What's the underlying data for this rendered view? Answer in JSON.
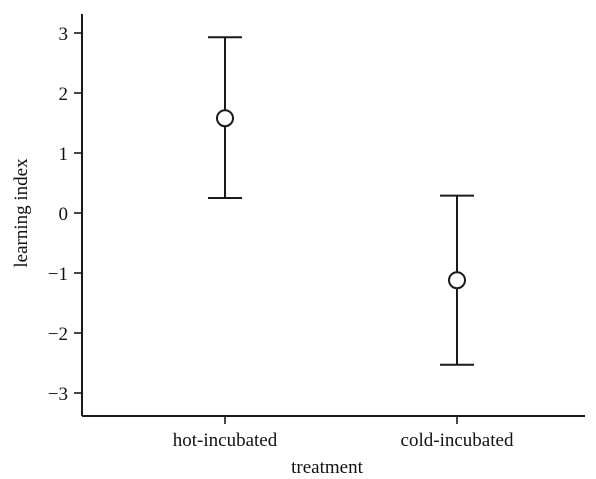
{
  "chart_data": {
    "type": "scatter",
    "categories": [
      "hot-incubated",
      "cold-incubated"
    ],
    "series": [
      {
        "values": [
          1.58,
          -1.12
        ],
        "error_low": [
          0.25,
          -2.53
        ],
        "error_high": [
          2.93,
          0.29
        ]
      }
    ],
    "xlabel": "treatment",
    "ylabel": "learning index",
    "ylim": [
      -3.45,
      3.35
    ],
    "yticks": [
      3,
      2,
      1,
      0,
      -1,
      -2,
      -3
    ],
    "ytick_labels": [
      "3",
      "2",
      "1",
      "0",
      "−1",
      "−2",
      "−3"
    ],
    "marker": "open-circle",
    "grid": false,
    "legend": "none"
  }
}
